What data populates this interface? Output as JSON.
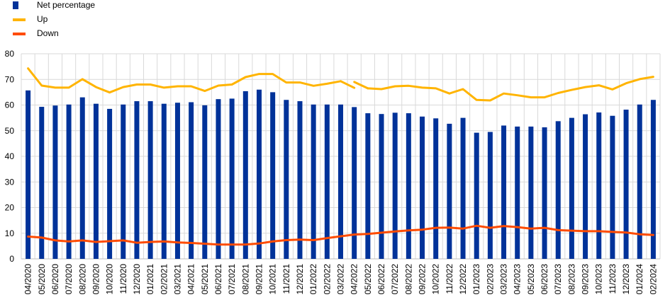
{
  "chart_data": {
    "type": "bar",
    "title": "",
    "xlabel": "",
    "ylabel": "",
    "ylim": [
      0,
      80
    ],
    "yticks": [
      0,
      10,
      20,
      30,
      40,
      50,
      60,
      70,
      80
    ],
    "grid": true,
    "legend_position": "top-left",
    "colors": {
      "bar": "#003299",
      "up": "#FFB400",
      "down": "#FF4B00",
      "grid": "#d9d9d9"
    },
    "categories": [
      "04/2020",
      "05/2020",
      "06/2020",
      "07/2020",
      "08/2020",
      "09/2020",
      "10/2020",
      "11/2020",
      "12/2020",
      "01/2021",
      "02/2021",
      "03/2021",
      "04/2021",
      "05/2021",
      "06/2021",
      "07/2021",
      "08/2021",
      "09/2021",
      "10/2021",
      "11/2021",
      "12/2021",
      "01/2022",
      "02/2022",
      "03/2022",
      "04/2022",
      "05/2022",
      "06/2022",
      "07/2022",
      "08/2022",
      "09/2022",
      "10/2022",
      "11/2022",
      "12/2022",
      "01/2023",
      "02/2023",
      "03/2023",
      "04/2023",
      "05/2023",
      "06/2023",
      "07/2023",
      "08/2023",
      "09/2023",
      "10/2023",
      "11/2023",
      "12/2023",
      "01/2024",
      "02/2024"
    ],
    "series": [
      {
        "name": "Net percentage",
        "kind": "bar",
        "values": [
          65.7,
          59.3,
          59.8,
          60.2,
          63.0,
          60.5,
          58.5,
          60.2,
          61.5,
          61.5,
          60.5,
          60.9,
          61.1,
          59.9,
          62.3,
          62.5,
          65.4,
          66.0,
          65.0,
          62.0,
          61.5,
          60.2,
          60.2,
          60.2,
          59.2,
          56.8,
          56.5,
          57.0,
          56.8,
          55.5,
          54.8,
          52.7,
          55.0,
          49.2,
          49.5,
          52.0,
          51.6,
          51.6,
          51.3,
          53.7,
          55.0,
          56.4,
          57.1,
          55.8,
          58.2,
          60.2,
          62.0
        ]
      },
      {
        "name": "Up",
        "kind": "line",
        "values": [
          74.3,
          67.6,
          66.8,
          66.8,
          70.1,
          67.0,
          64.9,
          67.0,
          68.0,
          68.0,
          66.8,
          67.3,
          67.3,
          65.5,
          67.6,
          68.0,
          70.9,
          72.1,
          72.1,
          68.8,
          68.8,
          67.5,
          68.3,
          69.3,
          null,
          66.5,
          66.2,
          67.3,
          67.5,
          66.8,
          66.5,
          64.5,
          66.2,
          62.0,
          61.8,
          64.5,
          63.8,
          63.0,
          63.0,
          64.7,
          65.9,
          67.0,
          67.7,
          66.1,
          68.5,
          70.1,
          71.0
        ]
      },
      {
        "name": "Down",
        "kind": "line",
        "values": [
          8.7,
          8.3,
          7.2,
          6.8,
          7.2,
          6.6,
          6.9,
          7.2,
          6.3,
          6.6,
          6.8,
          6.4,
          6.2,
          5.9,
          5.6,
          5.6,
          5.6,
          6.0,
          6.8,
          7.3,
          7.5,
          7.3,
          8.1,
          8.8,
          9.5,
          9.7,
          10.2,
          10.7,
          11.1,
          11.4,
          12.1,
          12.2,
          11.8,
          12.9,
          12.1,
          12.8,
          12.4,
          11.8,
          12.1,
          11.2,
          11.0,
          10.8,
          10.8,
          10.5,
          10.3,
          9.6,
          9.3
        ]
      }
    ],
    "up_segment_2_start": [
      68.2,
      69.0
    ]
  }
}
